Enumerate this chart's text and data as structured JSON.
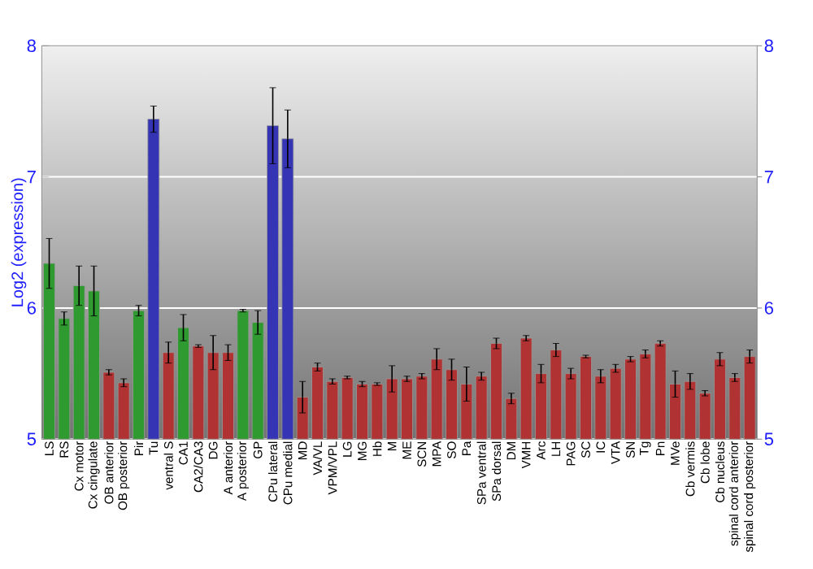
{
  "chart_data": {
    "type": "bar",
    "ylabel": "Log2 (expression)",
    "categories": [
      "LS",
      "RS",
      "Cx motor",
      "Cx cingulate",
      "OB anterior",
      "OB posterior",
      "Pir",
      "Tu",
      "ventral S",
      "CA1",
      "CA2/CA3",
      "DG",
      "A anterior",
      "A posterior",
      "GP",
      "CPu lateral",
      "CPu medial",
      "MD",
      "VA/VL",
      "VPM/VPL",
      "LG",
      "MG",
      "Hb",
      "M",
      "ME",
      "SCN",
      "MPA",
      "SO",
      "Pa",
      "SPa ventral",
      "SPa dorsal",
      "DM",
      "VMH",
      "Arc",
      "LH",
      "PAG",
      "SC",
      "IC",
      "VTA",
      "SN",
      "Tg",
      "Pn",
      "MVe",
      "Cb vermis",
      "Cb lobe",
      "Cb nucleus",
      "spinal cord anterior",
      "spinal cord posterior"
    ],
    "values": [
      6.34,
      5.92,
      6.17,
      6.13,
      5.51,
      5.43,
      5.98,
      7.44,
      5.66,
      5.85,
      5.71,
      5.66,
      5.66,
      5.98,
      5.89,
      7.39,
      7.29,
      5.32,
      5.55,
      5.44,
      5.47,
      5.42,
      5.42,
      5.46,
      5.46,
      5.48,
      5.61,
      5.53,
      5.42,
      5.48,
      5.73,
      5.31,
      5.77,
      5.5,
      5.68,
      5.5,
      5.63,
      5.48,
      5.54,
      5.61,
      5.65,
      5.73,
      5.42,
      5.44,
      5.35,
      5.61,
      5.47,
      5.63
    ],
    "errors": [
      0.19,
      0.05,
      0.15,
      0.19,
      0.02,
      0.03,
      0.04,
      0.1,
      0.08,
      0.1,
      0.01,
      0.13,
      0.06,
      0.01,
      0.09,
      0.29,
      0.22,
      0.12,
      0.03,
      0.02,
      0.01,
      0.02,
      0.01,
      0.1,
      0.02,
      0.02,
      0.08,
      0.08,
      0.13,
      0.03,
      0.04,
      0.04,
      0.02,
      0.07,
      0.05,
      0.04,
      0.01,
      0.05,
      0.03,
      0.02,
      0.03,
      0.02,
      0.1,
      0.06,
      0.02,
      0.05,
      0.03,
      0.05
    ],
    "colors": [
      "#2f9a2f",
      "#2f9a2f",
      "#2f9a2f",
      "#2f9a2f",
      "#b03232",
      "#b03232",
      "#2f9a2f",
      "#3434b4",
      "#b03232",
      "#2f9a2f",
      "#b03232",
      "#b03232",
      "#b03232",
      "#2f9a2f",
      "#2f9a2f",
      "#3434b4",
      "#3434b4",
      "#b03232",
      "#b03232",
      "#b03232",
      "#b03232",
      "#b03232",
      "#b03232",
      "#b03232",
      "#b03232",
      "#b03232",
      "#b03232",
      "#b03232",
      "#b03232",
      "#b03232",
      "#b03232",
      "#b03232",
      "#b03232",
      "#b03232",
      "#b03232",
      "#b03232",
      "#b03232",
      "#b03232",
      "#b03232",
      "#b03232",
      "#b03232",
      "#b03232",
      "#b03232",
      "#b03232",
      "#b03232",
      "#b03232",
      "#b03232",
      "#b03232"
    ],
    "ylim": [
      5,
      8
    ],
    "yticks": [
      5,
      6,
      7,
      8
    ],
    "y2lim": [
      5,
      8
    ],
    "y2ticks": [
      5,
      6,
      7,
      8
    ],
    "grid": "y"
  }
}
